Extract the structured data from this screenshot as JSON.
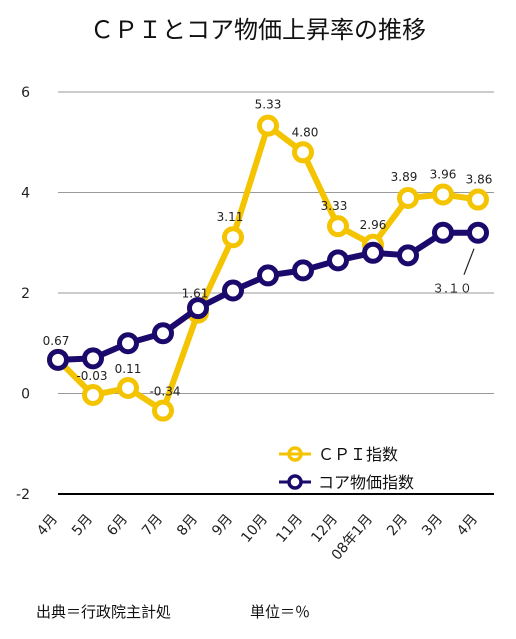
{
  "chart_data": {
    "type": "line",
    "title": "ＣＰＩとコア物価上昇率の推移",
    "categories": [
      "4月",
      "5月",
      "6月",
      "7月",
      "8月",
      "9月",
      "10月",
      "11月",
      "12月",
      "08年1月",
      "2月",
      "3月",
      "4月"
    ],
    "ylim": [
      -2,
      6
    ],
    "yticks": [
      -2,
      0,
      2,
      4,
      6
    ],
    "grid": true,
    "legend_position": "bottom-right",
    "series": [
      {
        "name": "ＣＰＩ指数",
        "color": "#f5c400",
        "values": [
          0.67,
          -0.03,
          0.11,
          -0.34,
          1.61,
          3.11,
          5.33,
          4.8,
          3.33,
          2.96,
          3.89,
          3.96,
          3.86
        ],
        "labels": [
          "0.67",
          "-0.03",
          "0.11",
          "-0.34",
          "1.61",
          "3.11",
          "5.33",
          "4.80",
          "3.33",
          "2.96",
          "3.89",
          "3.96",
          "3.86"
        ]
      },
      {
        "name": "コア物価指数",
        "color": "#1b0a6b",
        "values": [
          0.67,
          0.7,
          1.0,
          1.2,
          1.7,
          2.05,
          2.35,
          2.45,
          2.65,
          2.8,
          2.75,
          3.2,
          3.2
        ],
        "annotation": "３.１０"
      }
    ]
  },
  "footer": {
    "source": "出典＝行政院主計処",
    "unit": "単位＝％"
  }
}
